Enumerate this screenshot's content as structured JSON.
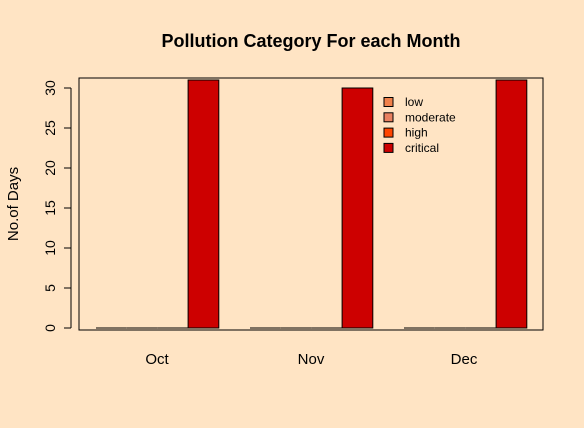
{
  "chart_data": {
    "type": "bar",
    "title": "Pollution Category For each Month",
    "xlabel": "",
    "ylabel": "No.of Days",
    "categories": [
      "Oct",
      "Nov",
      "Dec"
    ],
    "series": [
      {
        "name": "low",
        "color": "#f0804a",
        "values": [
          0,
          0,
          0
        ]
      },
      {
        "name": "moderate",
        "color": "#e88060",
        "values": [
          0,
          0,
          0
        ]
      },
      {
        "name": "high",
        "color": "#ff4500",
        "values": [
          0,
          0,
          0
        ]
      },
      {
        "name": "critical",
        "color": "#cd0000",
        "values": [
          31,
          30,
          31
        ]
      }
    ],
    "yticks": [
      0,
      5,
      10,
      15,
      20,
      25,
      30
    ],
    "ylim": [
      -0.2,
      31
    ],
    "grid": false,
    "legend_position": "top-right"
  }
}
